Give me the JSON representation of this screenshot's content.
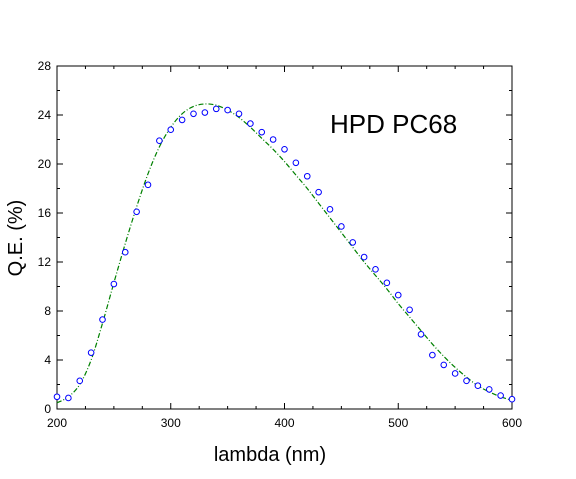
{
  "chart_data": {
    "type": "scatter",
    "title": "",
    "annotation": "HPD PC68",
    "xlabel": "lambda  (nm)",
    "ylabel": "Q.E.  (%)",
    "xlim": [
      200,
      600
    ],
    "ylim": [
      0,
      28
    ],
    "xticks": [
      200,
      300,
      400,
      500,
      600
    ],
    "yticks": [
      0,
      4,
      8,
      12,
      16,
      20,
      24,
      28
    ],
    "grid": false,
    "legend": "none",
    "series": [
      {
        "style": "markers",
        "color": "#0000ff",
        "x": [
          200,
          210,
          220,
          230,
          240,
          250,
          260,
          270,
          280,
          290,
          300,
          310,
          320,
          330,
          340,
          350,
          360,
          370,
          380,
          390,
          400,
          410,
          420,
          430,
          440,
          450,
          460,
          470,
          480,
          490,
          500,
          510,
          520,
          530,
          540,
          550,
          560,
          570,
          580,
          590,
          600
        ],
        "y": [
          1.0,
          0.9,
          2.3,
          4.6,
          7.3,
          10.2,
          12.8,
          16.1,
          18.3,
          21.9,
          22.8,
          23.6,
          24.1,
          24.2,
          24.5,
          24.4,
          24.1,
          23.3,
          22.6,
          22.0,
          21.2,
          20.1,
          19.0,
          17.7,
          16.3,
          14.9,
          13.6,
          12.4,
          11.4,
          10.3,
          9.3,
          8.1,
          6.1,
          4.4,
          3.6,
          2.9,
          2.3,
          1.9,
          1.6,
          1.1,
          0.8
        ]
      },
      {
        "style": "dash-dot-line",
        "color": "#008000",
        "x": [
          200,
          210,
          220,
          230,
          240,
          250,
          260,
          270,
          280,
          290,
          300,
          310,
          320,
          330,
          340,
          350,
          360,
          370,
          380,
          390,
          400,
          410,
          420,
          430,
          440,
          450,
          460,
          470,
          480,
          490,
          500,
          510,
          520,
          530,
          540,
          550,
          560,
          570,
          580,
          590,
          600
        ],
        "y": [
          0.5,
          1.0,
          2.0,
          4.0,
          7.0,
          10.3,
          13.5,
          16.5,
          19.2,
          21.4,
          23.0,
          24.1,
          24.7,
          24.9,
          24.8,
          24.4,
          23.8,
          23.0,
          22.1,
          21.2,
          20.2,
          19.1,
          18.0,
          16.8,
          15.6,
          14.4,
          13.2,
          12.0,
          10.9,
          9.8,
          8.6,
          7.5,
          6.4,
          5.3,
          4.3,
          3.4,
          2.6,
          1.9,
          1.4,
          1.0,
          0.7
        ]
      }
    ]
  }
}
